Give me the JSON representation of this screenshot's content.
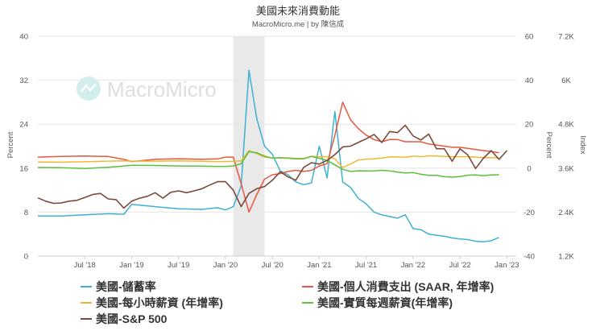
{
  "chart_data": {
    "type": "line",
    "title": "美國未來消費動能",
    "subtitle": "MacroMicro.me | by 陳信成",
    "watermark": "MacroMicro",
    "shaded_region": {
      "start": "2020-02",
      "end": "2020-06"
    },
    "x_tick_labels": [
      "Jul '18",
      "Jan '19",
      "Jul '19",
      "Jan '20",
      "Jul '20",
      "Jan '21",
      "Jul '21",
      "Jan '22",
      "Jul '22",
      "Jan '23"
    ],
    "axes": {
      "left": {
        "title": "Percent",
        "range": [
          0,
          40
        ],
        "ticks": [
          "0",
          "8",
          "16",
          "24",
          "32",
          "40"
        ]
      },
      "mid": {
        "title": "Percent",
        "range": [
          -40,
          60
        ],
        "ticks": [
          "-40",
          "-20",
          "0",
          "20",
          "40",
          "60"
        ]
      },
      "right": {
        "title": "Index",
        "range": [
          1200,
          7200
        ],
        "ticks": [
          "1.2K",
          "2.4K",
          "3.6K",
          "4.8K",
          "6K",
          "7.2K"
        ]
      }
    },
    "series": [
      {
        "name": "美國-儲蓄率",
        "color": "#3fb0d3",
        "axis": "left",
        "points": [
          [
            "2018-01",
            7.3
          ],
          [
            "2018-04",
            7.3
          ],
          [
            "2018-07",
            7.5
          ],
          [
            "2018-10",
            7.7
          ],
          [
            "2018-12",
            7.6
          ],
          [
            "2019-01",
            9.4
          ],
          [
            "2019-04",
            9.0
          ],
          [
            "2019-07",
            8.6
          ],
          [
            "2019-10",
            8.5
          ],
          [
            "2019-12",
            8.8
          ],
          [
            "2020-01",
            8.4
          ],
          [
            "2020-02",
            9.0
          ],
          [
            "2020-03",
            12.7
          ],
          [
            "2020-04",
            33.8
          ],
          [
            "2020-05",
            25.0
          ],
          [
            "2020-06",
            20.0
          ],
          [
            "2020-07",
            18.5
          ],
          [
            "2020-08",
            15.5
          ],
          [
            "2020-09",
            14.8
          ],
          [
            "2020-10",
            13.5
          ],
          [
            "2020-11",
            13.0
          ],
          [
            "2020-12",
            13.3
          ],
          [
            "2021-01",
            20.0
          ],
          [
            "2021-02",
            14.2
          ],
          [
            "2021-03",
            26.3
          ],
          [
            "2021-04",
            13.5
          ],
          [
            "2021-05",
            12.5
          ],
          [
            "2021-06",
            10.5
          ],
          [
            "2021-07",
            9.5
          ],
          [
            "2021-08",
            8.0
          ],
          [
            "2021-09",
            7.5
          ],
          [
            "2021-10",
            7.2
          ],
          [
            "2021-11",
            6.9
          ],
          [
            "2021-12",
            7.5
          ],
          [
            "2022-01",
            5.0
          ],
          [
            "2022-02",
            4.8
          ],
          [
            "2022-03",
            4.0
          ],
          [
            "2022-04",
            3.8
          ],
          [
            "2022-05",
            3.6
          ],
          [
            "2022-06",
            3.3
          ],
          [
            "2022-07",
            3.1
          ],
          [
            "2022-08",
            3.0
          ],
          [
            "2022-09",
            2.7
          ],
          [
            "2022-10",
            2.6
          ],
          [
            "2022-11",
            2.8
          ],
          [
            "2022-12",
            3.4
          ]
        ]
      },
      {
        "name": "美國-個人消費支出 (SAAR, 年增率)",
        "color": "#e8573f",
        "axis": "mid",
        "points": [
          [
            "2018-01",
            5.0
          ],
          [
            "2018-04",
            5.3
          ],
          [
            "2018-07",
            5.5
          ],
          [
            "2018-10",
            5.3
          ],
          [
            "2018-12",
            4.0
          ],
          [
            "2019-01",
            3.0
          ],
          [
            "2019-04",
            4.0
          ],
          [
            "2019-07",
            4.3
          ],
          [
            "2019-10",
            4.0
          ],
          [
            "2019-12",
            4.2
          ],
          [
            "2020-01",
            5.0
          ],
          [
            "2020-02",
            5.0
          ],
          [
            "2020-03",
            -7.0
          ],
          [
            "2020-04",
            -20.0
          ],
          [
            "2020-05",
            -12.0
          ],
          [
            "2020-06",
            -5.0
          ],
          [
            "2020-07",
            -3.0
          ],
          [
            "2020-08",
            -2.5
          ],
          [
            "2020-09",
            -1.5
          ],
          [
            "2020-10",
            -1.0
          ],
          [
            "2020-11",
            -1.5
          ],
          [
            "2020-12",
            -1.0
          ],
          [
            "2021-01",
            1.0
          ],
          [
            "2021-02",
            2.0
          ],
          [
            "2021-03",
            15.0
          ],
          [
            "2021-04",
            30.0
          ],
          [
            "2021-05",
            22.0
          ],
          [
            "2021-06",
            18.0
          ],
          [
            "2021-07",
            15.0
          ],
          [
            "2021-08",
            13.0
          ],
          [
            "2021-09",
            12.0
          ],
          [
            "2021-10",
            13.0
          ],
          [
            "2021-11",
            13.0
          ],
          [
            "2021-12",
            12.0
          ],
          [
            "2022-01",
            12.0
          ],
          [
            "2022-02",
            12.0
          ],
          [
            "2022-03",
            11.0
          ],
          [
            "2022-04",
            10.5
          ],
          [
            "2022-05",
            10.0
          ],
          [
            "2022-06",
            9.5
          ],
          [
            "2022-07",
            9.5
          ],
          [
            "2022-08",
            9.0
          ],
          [
            "2022-09",
            8.5
          ],
          [
            "2022-10",
            8.0
          ],
          [
            "2022-11",
            7.5
          ],
          [
            "2022-12",
            7.0
          ]
        ]
      },
      {
        "name": "美國-每小時薪資 (年增率)",
        "color": "#f2b730",
        "axis": "mid",
        "points": [
          [
            "2018-01",
            2.8
          ],
          [
            "2018-04",
            2.7
          ],
          [
            "2018-07",
            2.9
          ],
          [
            "2018-10",
            3.2
          ],
          [
            "2018-12",
            3.3
          ],
          [
            "2019-01",
            3.2
          ],
          [
            "2019-04",
            3.2
          ],
          [
            "2019-07",
            3.3
          ],
          [
            "2019-10",
            3.1
          ],
          [
            "2019-12",
            3.0
          ],
          [
            "2020-01",
            3.0
          ],
          [
            "2020-02",
            3.1
          ],
          [
            "2020-03",
            3.3
          ],
          [
            "2020-04",
            8.0
          ],
          [
            "2020-05",
            6.6
          ],
          [
            "2020-06",
            5.0
          ],
          [
            "2020-07",
            4.7
          ],
          [
            "2020-08",
            4.6
          ],
          [
            "2020-09",
            4.7
          ],
          [
            "2020-10",
            4.4
          ],
          [
            "2020-11",
            4.4
          ],
          [
            "2020-12",
            5.4
          ],
          [
            "2021-01",
            5.2
          ],
          [
            "2021-02",
            5.2
          ],
          [
            "2021-03",
            4.2
          ],
          [
            "2021-04",
            0.3
          ],
          [
            "2021-05",
            1.9
          ],
          [
            "2021-06",
            3.7
          ],
          [
            "2021-07",
            4.1
          ],
          [
            "2021-08",
            4.2
          ],
          [
            "2021-09",
            4.6
          ],
          [
            "2021-10",
            5.1
          ],
          [
            "2021-11",
            5.1
          ],
          [
            "2021-12",
            4.9
          ],
          [
            "2022-01",
            5.5
          ],
          [
            "2022-02",
            5.2
          ],
          [
            "2022-03",
            5.6
          ],
          [
            "2022-04",
            5.5
          ],
          [
            "2022-05",
            5.3
          ],
          [
            "2022-06",
            5.2
          ],
          [
            "2022-07",
            5.2
          ],
          [
            "2022-08",
            5.2
          ],
          [
            "2022-09",
            5.0
          ],
          [
            "2022-10",
            4.8
          ],
          [
            "2022-11",
            4.8
          ],
          [
            "2022-12",
            4.6
          ]
        ]
      },
      {
        "name": "美國-實質每週薪資(年增率)",
        "color": "#5cbf3d",
        "axis": "mid",
        "points": [
          [
            "2018-01",
            0.3
          ],
          [
            "2018-04",
            0.2
          ],
          [
            "2018-07",
            -0.2
          ],
          [
            "2018-10",
            0.4
          ],
          [
            "2018-12",
            1.0
          ],
          [
            "2019-01",
            1.3
          ],
          [
            "2019-04",
            1.2
          ],
          [
            "2019-07",
            1.0
          ],
          [
            "2019-10",
            0.9
          ],
          [
            "2019-12",
            0.8
          ],
          [
            "2020-01",
            0.8
          ],
          [
            "2020-02",
            1.0
          ],
          [
            "2020-03",
            2.0
          ],
          [
            "2020-04",
            7.5
          ],
          [
            "2020-05",
            7.0
          ],
          [
            "2020-06",
            5.5
          ],
          [
            "2020-07",
            4.5
          ],
          [
            "2020-08",
            4.8
          ],
          [
            "2020-09",
            4.5
          ],
          [
            "2020-10",
            4.2
          ],
          [
            "2020-11",
            4.2
          ],
          [
            "2020-12",
            5.3
          ],
          [
            "2021-01",
            4.5
          ],
          [
            "2021-02",
            3.5
          ],
          [
            "2021-03",
            1.5
          ],
          [
            "2021-04",
            -0.5
          ],
          [
            "2021-05",
            -1.5
          ],
          [
            "2021-06",
            -1.2
          ],
          [
            "2021-07",
            -1.3
          ],
          [
            "2021-08",
            -1.3
          ],
          [
            "2021-09",
            -1.0
          ],
          [
            "2021-10",
            -1.2
          ],
          [
            "2021-11",
            -1.8
          ],
          [
            "2021-12",
            -2.2
          ],
          [
            "2022-01",
            -2.0
          ],
          [
            "2022-02",
            -2.8
          ],
          [
            "2022-03",
            -3.3
          ],
          [
            "2022-04",
            -3.3
          ],
          [
            "2022-05",
            -3.9
          ],
          [
            "2022-06",
            -4.1
          ],
          [
            "2022-07",
            -3.8
          ],
          [
            "2022-08",
            -3.2
          ],
          [
            "2022-09",
            -3.1
          ],
          [
            "2022-10",
            -3.4
          ],
          [
            "2022-11",
            -3.1
          ],
          [
            "2022-12",
            -3.0
          ]
        ]
      },
      {
        "name": "美國-S&P 500",
        "color": "#7b4a3a",
        "axis": "right",
        "points": [
          [
            "2018-01",
            2790
          ],
          [
            "2018-02",
            2700
          ],
          [
            "2018-03",
            2640
          ],
          [
            "2018-04",
            2650
          ],
          [
            "2018-05",
            2700
          ],
          [
            "2018-06",
            2720
          ],
          [
            "2018-07",
            2800
          ],
          [
            "2018-08",
            2880
          ],
          [
            "2018-09",
            2910
          ],
          [
            "2018-10",
            2760
          ],
          [
            "2018-11",
            2740
          ],
          [
            "2018-12",
            2510
          ],
          [
            "2019-01",
            2700
          ],
          [
            "2019-02",
            2780
          ],
          [
            "2019-03",
            2830
          ],
          [
            "2019-04",
            2930
          ],
          [
            "2019-05",
            2780
          ],
          [
            "2019-06",
            2940
          ],
          [
            "2019-07",
            2980
          ],
          [
            "2019-08",
            2930
          ],
          [
            "2019-09",
            2980
          ],
          [
            "2019-10",
            3040
          ],
          [
            "2019-11",
            3140
          ],
          [
            "2019-12",
            3230
          ],
          [
            "2020-01",
            3230
          ],
          [
            "2020-02",
            3000
          ],
          [
            "2020-03",
            2550
          ],
          [
            "2020-04",
            2910
          ],
          [
            "2020-05",
            3040
          ],
          [
            "2020-06",
            3100
          ],
          [
            "2020-07",
            3270
          ],
          [
            "2020-08",
            3500
          ],
          [
            "2020-09",
            3360
          ],
          [
            "2020-10",
            3270
          ],
          [
            "2020-11",
            3620
          ],
          [
            "2020-12",
            3750
          ],
          [
            "2021-01",
            3710
          ],
          [
            "2021-02",
            3810
          ],
          [
            "2021-03",
            3970
          ],
          [
            "2021-04",
            4180
          ],
          [
            "2021-05",
            4200
          ],
          [
            "2021-06",
            4300
          ],
          [
            "2021-07",
            4400
          ],
          [
            "2021-08",
            4520
          ],
          [
            "2021-09",
            4300
          ],
          [
            "2021-10",
            4600
          ],
          [
            "2021-11",
            4570
          ],
          [
            "2021-12",
            4770
          ],
          [
            "2022-01",
            4480
          ],
          [
            "2022-02",
            4370
          ],
          [
            "2022-03",
            4530
          ],
          [
            "2022-04",
            4130
          ],
          [
            "2022-05",
            4130
          ],
          [
            "2022-06",
            3790
          ],
          [
            "2022-07",
            4130
          ],
          [
            "2022-08",
            3960
          ],
          [
            "2022-09",
            3590
          ],
          [
            "2022-10",
            3870
          ],
          [
            "2022-11",
            4080
          ],
          [
            "2022-12",
            3840
          ],
          [
            "2023-01",
            4080
          ]
        ]
      }
    ]
  }
}
